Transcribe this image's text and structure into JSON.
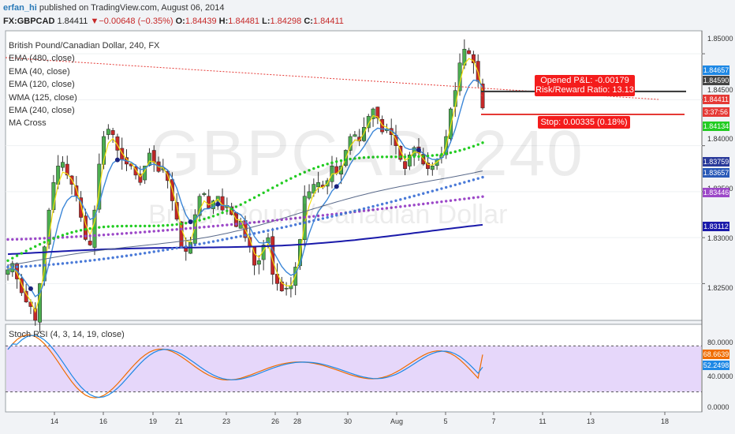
{
  "header": {
    "author": "erfan_hi",
    "published": " published on TradingView.com, August 06, 2014",
    "symbol": "FX:GBPCAD",
    "last": "1.84411",
    "change": "▼−0.00648 (−0.35%)",
    "o_label": "O:",
    "o": "1.84439",
    "h_label": "H:",
    "h": "1.84481",
    "l_label": "L:",
    "l": "1.84298",
    "c_label": "C:",
    "c": "1.84411"
  },
  "legend": {
    "title": "British Pound/Canadian Dollar, 240, FX",
    "items": [
      "EMA (480, close)",
      "EMA (40, close)",
      "EMA (120, close)",
      "WMA (125, close)",
      "EMA (240, close)",
      "MA Cross"
    ]
  },
  "watermark": {
    "symbol": "GBPCAD, 240",
    "name": "British Pound/Canadian Dollar"
  },
  "annotations": {
    "pnl": "Opened P&L: -0.00179",
    "rr": "Risk/Reward Ratio: 13.13",
    "stop": "Stop: 0.00335 (0.18%)"
  },
  "price_axis": {
    "ticks": [
      "1.85000",
      "1.84500",
      "1.84000",
      "1.83500",
      "1.83000",
      "1.82500"
    ],
    "tags": [
      {
        "text": "1.84657",
        "color": "#1e88e5"
      },
      {
        "text": "1.84590",
        "color": "#444444"
      },
      {
        "text": "1.84411",
        "color": "#e53935"
      },
      {
        "text": "3:37:56",
        "color": "#e53935"
      },
      {
        "text": "1.84134",
        "color": "#22cc22"
      },
      {
        "text": "1.83759",
        "color": "#2a3a9a"
      },
      {
        "text": "1.83657",
        "color": "#2a5ab8"
      },
      {
        "text": "1.83446",
        "color": "#9c48c8"
      },
      {
        "text": "1.83112",
        "color": "#1a1aaa"
      }
    ]
  },
  "rsi": {
    "label": "Stoch RSI (4, 3, 14, 19, close)",
    "ticks": [
      "80.0000",
      "40.0000",
      "0.0000"
    ],
    "tags": [
      {
        "text": "68.6639",
        "color": "#ef6c00"
      },
      {
        "text": "52.2498",
        "color": "#1e88e5"
      }
    ]
  },
  "time_axis": {
    "ticks": [
      "14",
      "16",
      "19",
      "21",
      "23",
      "26",
      "28",
      "30",
      "Aug",
      "5",
      "7",
      "11",
      "13",
      "18"
    ]
  },
  "chart_data": {
    "type": "candlestick",
    "symbol": "GBPCAD",
    "interval": "240",
    "ylim": [
      1.821,
      1.8525
    ],
    "candles_approx_close": [
      1.8265,
      1.8272,
      1.8255,
      1.824,
      1.823,
      1.8225,
      1.821,
      1.825,
      1.829,
      1.833,
      1.836,
      1.8378,
      1.8382,
      1.8368,
      1.8358,
      1.8345,
      1.8322,
      1.8298,
      1.8292,
      1.833,
      1.838,
      1.841,
      1.8418,
      1.8412,
      1.8395,
      1.8385,
      1.838,
      1.8378,
      1.8368,
      1.836,
      1.8378,
      1.8392,
      1.8382,
      1.8372,
      1.8375,
      1.8362,
      1.834,
      1.832,
      1.829,
      1.8285,
      1.8295,
      1.8325,
      1.8345,
      1.8348,
      1.8332,
      1.834,
      1.8345,
      1.833,
      1.8335,
      1.8325,
      1.8312,
      1.8318,
      1.83,
      1.829,
      1.827,
      1.8275,
      1.8292,
      1.83,
      1.826,
      1.825,
      1.8242,
      1.8245,
      1.8248,
      1.8268,
      1.8298,
      1.8345,
      1.835,
      1.8358,
      1.836,
      1.8355,
      1.8362,
      1.8378,
      1.837,
      1.8378,
      1.8395,
      1.841,
      1.8412,
      1.8405,
      1.842,
      1.8432,
      1.844,
      1.843,
      1.8415,
      1.8418,
      1.8412,
      1.84,
      1.8385,
      1.8375,
      1.839,
      1.8398,
      1.8392,
      1.838,
      1.8375,
      1.8378,
      1.8385,
      1.839,
      1.841,
      1.844,
      1.846,
      1.849,
      1.8505,
      1.85,
      1.849,
      1.847,
      1.8441
    ],
    "overlays": [
      {
        "name": "EMA (480, close)",
        "end": 1.83112
      },
      {
        "name": "EMA (40, close)",
        "end": 1.84657
      },
      {
        "name": "EMA (120, close)",
        "end": 1.83759
      },
      {
        "name": "WMA (125, close)",
        "end": 1.83446
      },
      {
        "name": "EMA (240, close)",
        "end": 1.83657
      },
      {
        "name": "MA Cross",
        "end": 1.84134
      }
    ],
    "levels": {
      "open_position": 1.8459,
      "stop": 1.84255
    },
    "stoch_rsi": {
      "k_last": 68.6639,
      "d_last": 52.2498,
      "upper": 80,
      "lower": 20
    }
  }
}
